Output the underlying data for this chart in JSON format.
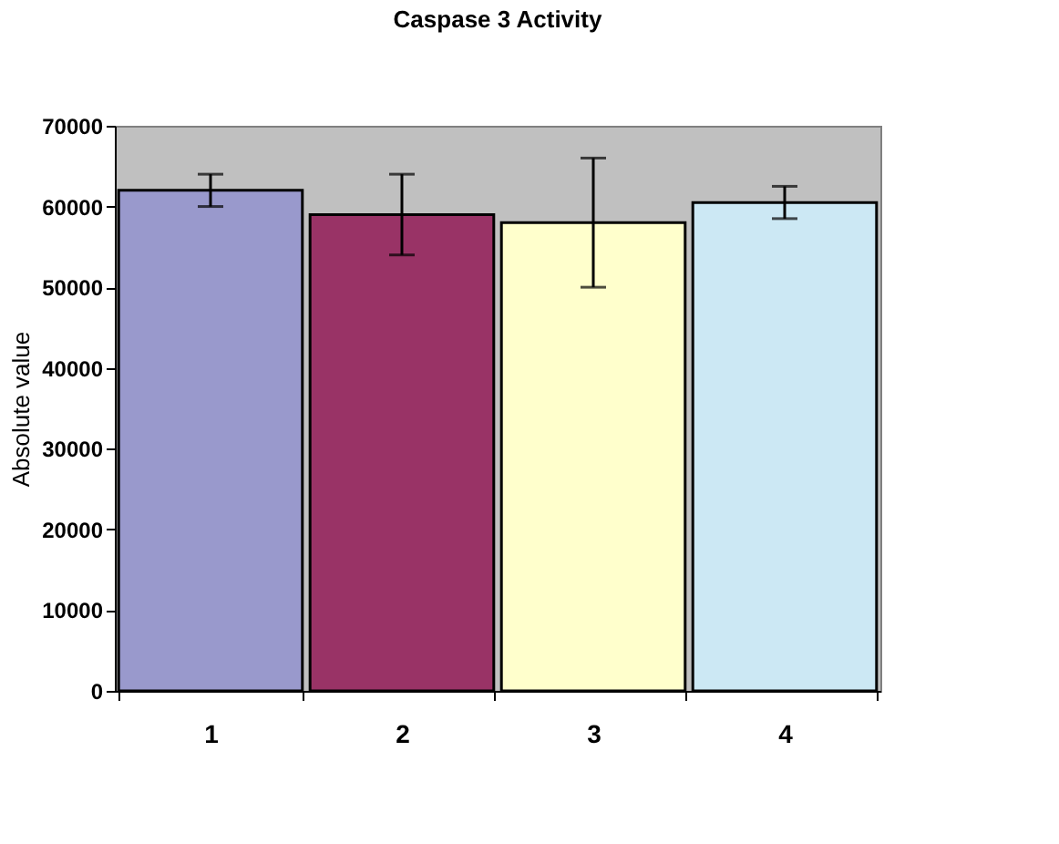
{
  "chart_data": {
    "type": "bar",
    "title": "Caspase 3 Activity",
    "ylabel": "Absolute value",
    "categories": [
      "1",
      "2",
      "3",
      "4"
    ],
    "values": [
      62000,
      59000,
      58000,
      60500
    ],
    "errors": [
      2000,
      5000,
      8000,
      2000
    ],
    "colors": [
      "#9999cc",
      "#993366",
      "#ffffcc",
      "#cce8f4"
    ],
    "ylim": [
      0,
      70000
    ],
    "yticks": [
      0,
      10000,
      20000,
      30000,
      40000,
      50000,
      60000,
      70000
    ],
    "grid": false
  }
}
